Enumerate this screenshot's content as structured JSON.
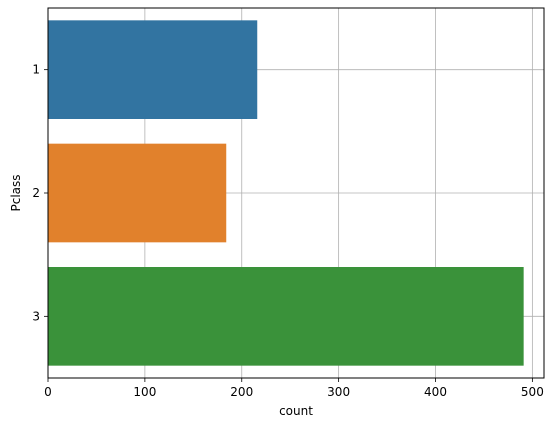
{
  "chart_data": {
    "type": "bar",
    "orientation": "horizontal",
    "categories": [
      "1",
      "2",
      "3"
    ],
    "values": [
      216,
      184,
      491
    ],
    "colors": [
      "#3274a1",
      "#e1812c",
      "#3a923a"
    ],
    "xlabel": "count",
    "ylabel": "Pclass",
    "xlim": [
      0,
      512
    ],
    "xticks": [
      0,
      100,
      200,
      300,
      400,
      500
    ],
    "grid": true
  }
}
